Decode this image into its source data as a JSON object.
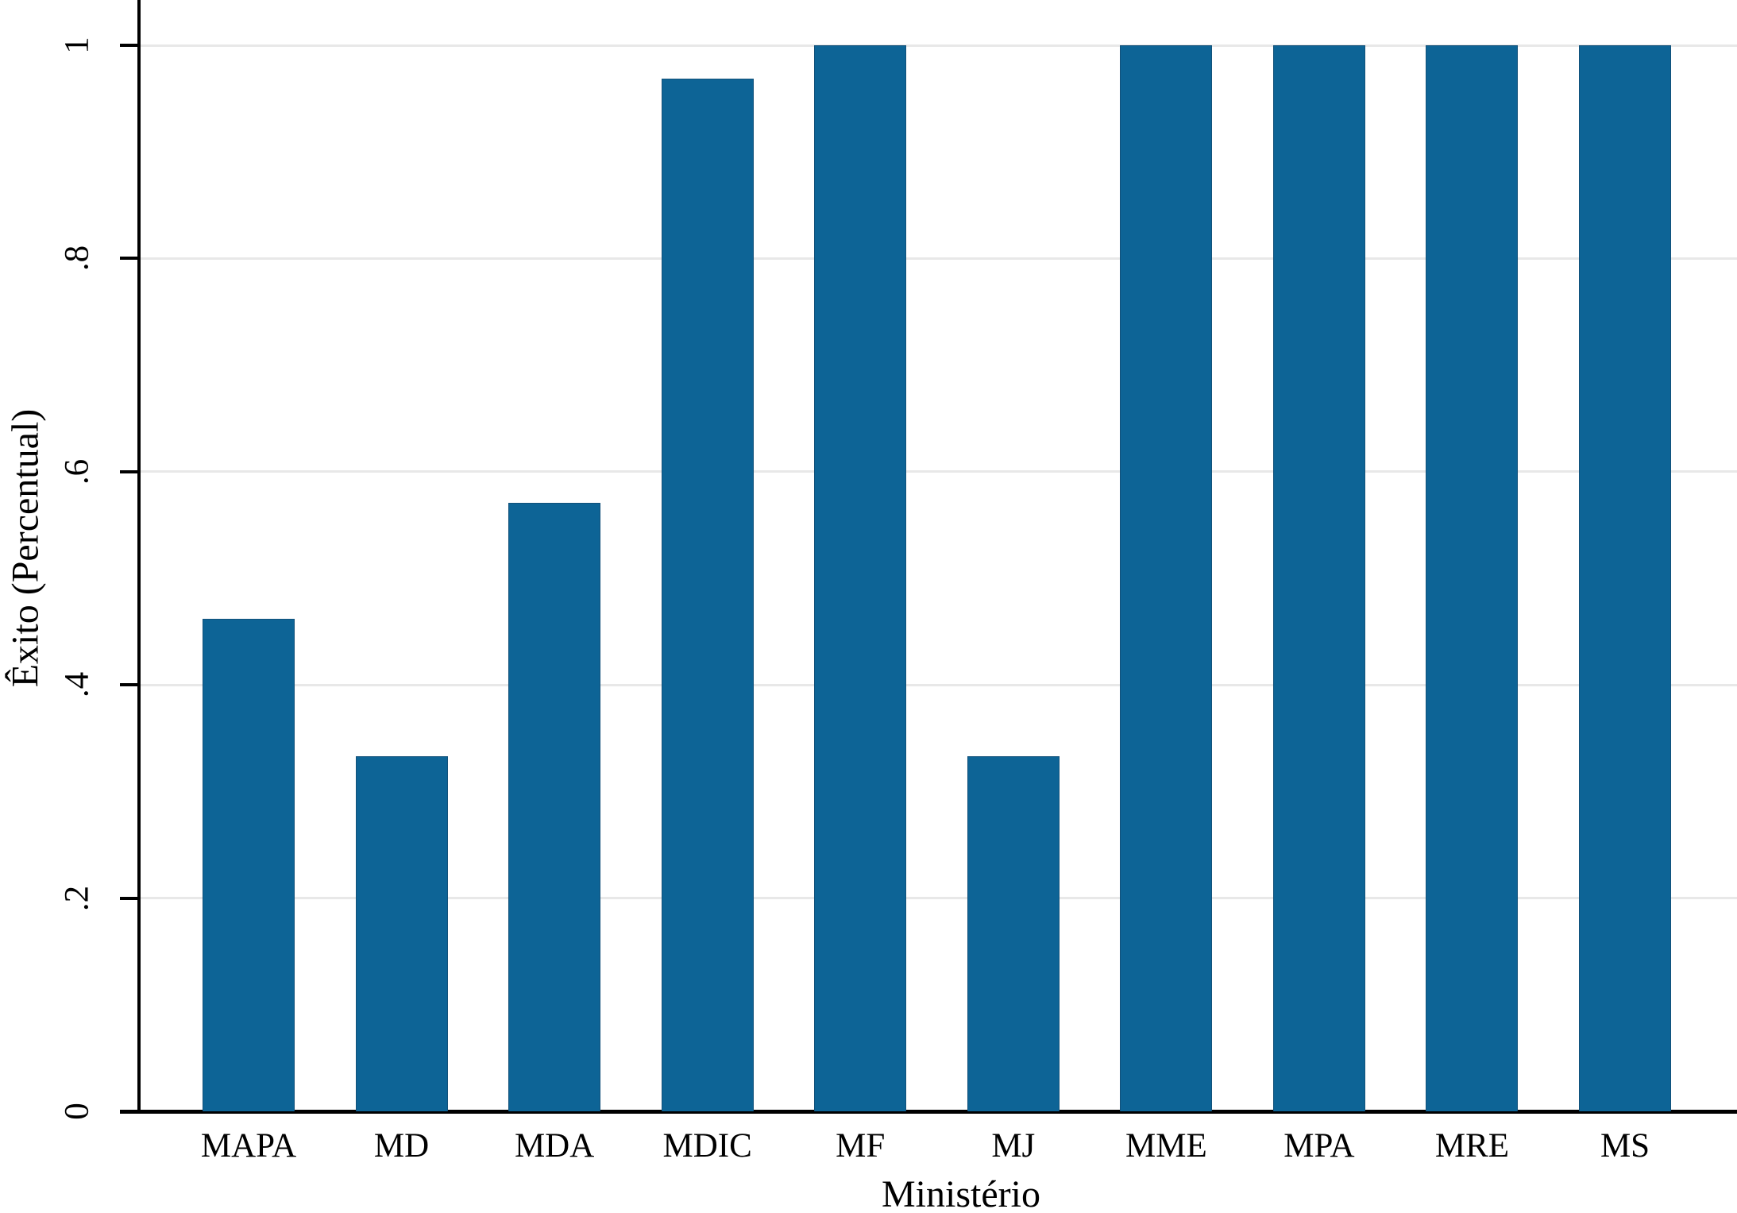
{
  "chart_data": {
    "type": "bar",
    "title": "",
    "xlabel": "Ministério",
    "ylabel": "Êxito (Percentual)",
    "categories": [
      "MAPA",
      "MD",
      "MDA",
      "MDIC",
      "MF",
      "MJ",
      "MME",
      "MPA",
      "MRE",
      "MS"
    ],
    "values": [
      0.462,
      0.333,
      0.571,
      0.969,
      1,
      0.333,
      1,
      1,
      1,
      1
    ],
    "ylim": [
      0,
      1
    ],
    "yticks": [
      0,
      0.2,
      0.4,
      0.6,
      0.8,
      1
    ],
    "ytick_labels": [
      "0",
      ".2",
      ".4",
      ".6",
      ".8",
      "1"
    ],
    "grid": true,
    "legend": "none",
    "colors": {
      "bar_fill": "#0d6496",
      "bar_outline": "#12517a",
      "axis": "#000000",
      "gridline": "#e8e8e8",
      "background": "#ffffff"
    }
  }
}
